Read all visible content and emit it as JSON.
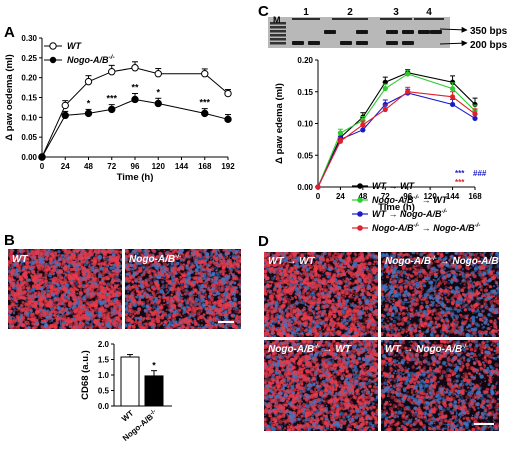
{
  "panels": {
    "A": "A",
    "B": "B",
    "C": "C",
    "D": "D"
  },
  "chart_data": [
    {
      "id": "A",
      "type": "line",
      "xlabel": "Time (h)",
      "ylabel": "Δ paw oedema (ml)",
      "xlim": [
        0,
        192
      ],
      "ylim": [
        0,
        0.3
      ],
      "xticks": [
        0,
        24,
        48,
        72,
        96,
        120,
        144,
        168,
        192
      ],
      "yticks": [
        0.0,
        0.05,
        0.1,
        0.15,
        0.2,
        0.25,
        0.3
      ],
      "ytick_labels": [
        "0.00",
        "0.05",
        "0.10",
        "0.15",
        "0.20",
        "0.25",
        "0.30"
      ],
      "x": [
        0,
        24,
        48,
        72,
        96,
        120,
        168,
        192
      ],
      "series": [
        {
          "name": "WT",
          "marker": "open-circle",
          "color": "#000000",
          "values": [
            0,
            0.13,
            0.19,
            0.215,
            0.225,
            0.21,
            0.21,
            0.16
          ],
          "errors": [
            0,
            0.012,
            0.015,
            0.016,
            0.015,
            0.013,
            0.012,
            0.01
          ]
        },
        {
          "name": "Nogo-A/B",
          "name_sup": "-/-",
          "marker": "filled-circle",
          "color": "#000000",
          "values": [
            0,
            0.105,
            0.11,
            0.12,
            0.145,
            0.135,
            0.11,
            0.095
          ],
          "errors": [
            0,
            0.01,
            0.01,
            0.012,
            0.015,
            0.013,
            0.012,
            0.012
          ]
        }
      ],
      "significance": [
        {
          "x": 48,
          "label": "*"
        },
        {
          "x": 72,
          "label": "***"
        },
        {
          "x": 96,
          "label": "**"
        },
        {
          "x": 120,
          "label": "*"
        },
        {
          "x": 168,
          "label": "***"
        }
      ],
      "legend_placement": "top-left"
    },
    {
      "id": "B-bar",
      "type": "bar",
      "ylabel": "CD68 (a.u.)",
      "ylim": [
        0,
        2.0
      ],
      "yticks": [
        0.0,
        0.5,
        1.0,
        1.5,
        2.0
      ],
      "ytick_labels": [
        "0.0",
        "0.5",
        "1.0",
        "1.5",
        "2.0"
      ],
      "categories": [
        "WT",
        "Nogo-A/B"
      ],
      "category_sups": [
        "",
        "-/-"
      ],
      "values": [
        1.58,
        0.97
      ],
      "errors": [
        0.08,
        0.17
      ],
      "fills": [
        "#ffffff",
        "#000000"
      ],
      "significance": [
        {
          "index": 1,
          "label": "*"
        }
      ]
    },
    {
      "id": "C",
      "type": "line",
      "xlabel": "Time (h)",
      "ylabel": "Δ paw edema (ml)",
      "xlim": [
        0,
        168
      ],
      "ylim": [
        0,
        0.2
      ],
      "xticks": [
        0,
        24,
        48,
        72,
        96,
        120,
        144,
        168
      ],
      "yticks": [
        0.0,
        0.05,
        0.1,
        0.15,
        0.2
      ],
      "ytick_labels": [
        "0.00",
        "0.05",
        "0.10",
        "0.15",
        "0.20"
      ],
      "x": [
        0,
        24,
        48,
        72,
        96,
        144,
        168
      ],
      "series": [
        {
          "name": "WT → WT",
          "color": "#000000",
          "values": [
            0,
            0.078,
            0.11,
            0.165,
            0.18,
            0.165,
            0.13
          ],
          "errors": [
            0,
            0.006,
            0.007,
            0.008,
            0.005,
            0.01,
            0.01
          ]
        },
        {
          "name": "Nogo-A/B -/- → WT",
          "color": "#2ecc2e",
          "values": [
            0,
            0.085,
            0.105,
            0.155,
            0.178,
            0.155,
            0.12
          ],
          "errors": [
            0,
            0.006,
            0.006,
            0.007,
            0.006,
            0.009,
            0.009
          ]
        },
        {
          "name": "WT → Nogo-A/B -/-",
          "color": "#1a1acc",
          "values": [
            0,
            0.075,
            0.09,
            0.13,
            0.148,
            0.13,
            0.108
          ],
          "errors": [
            0,
            0.005,
            0.006,
            0.007,
            0.006,
            0.008,
            0.007
          ]
        },
        {
          "name": "Nogo-A/B -/- → Nogo-A/B -/-",
          "color": "#e0202a",
          "values": [
            0,
            0.072,
            0.098,
            0.122,
            0.15,
            0.142,
            0.115
          ],
          "errors": [
            0,
            0.005,
            0.006,
            0.007,
            0.007,
            0.008,
            0.008
          ]
        }
      ],
      "legend_placement": "bottom-right"
    }
  ],
  "legendA": {
    "s1": "WT",
    "s2": "Nogo-A/B",
    "s2sup": "-/-"
  },
  "legendC": [
    {
      "a": "WT",
      "asup": "",
      "b": "WT",
      "bsup": "",
      "color": "#000000"
    },
    {
      "a": "Nogo-A/B",
      "asup": "-/-",
      "b": "WT",
      "bsup": "",
      "color": "#2ecc2e"
    },
    {
      "a": "WT",
      "asup": "",
      "b": "Nogo-A/B",
      "bsup": "-/-",
      "color": "#1a1acc"
    },
    {
      "a": "Nogo-A/B",
      "asup": "-/-",
      "b": "Nogo-A/B",
      "bsup": "-/-",
      "color": "#e0202a"
    }
  ],
  "sigC": {
    "blue": "***",
    "red": "***",
    "hash": "###",
    "blue_color": "#1a1acc",
    "red_color": "#e0202a"
  },
  "gel": {
    "marker": "M",
    "lanes": [
      "1",
      "2",
      "3",
      "4"
    ],
    "bands": [
      "350 bps",
      "200 bps"
    ]
  },
  "imagesB": {
    "left": "WT",
    "right_base": "Nogo-A/B",
    "right_sup": "-/-"
  },
  "imagesD": [
    {
      "a": "WT",
      "asup": "",
      "b": "WT",
      "bsup": ""
    },
    {
      "a": "Nogo-A/B",
      "asup": "-/-",
      "b": "Nogo-A/B",
      "bsup": "-/-"
    },
    {
      "a": "Nogo-A/B",
      "asup": "-/-",
      "b": "WT",
      "bsup": ""
    },
    {
      "a": "WT",
      "asup": "",
      "b": "Nogo-A/B",
      "bsup": "-/-"
    }
  ],
  "arrow": "→",
  "colors": {
    "tissue_bg": "#120814",
    "red": "#e83a4a",
    "blue": "#3a78c8"
  }
}
